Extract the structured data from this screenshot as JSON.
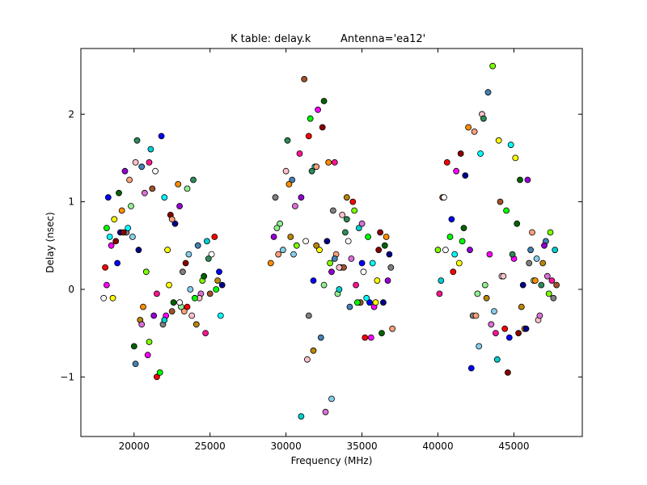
{
  "chart_data": {
    "type": "scatter",
    "title": "K table: delay.k",
    "subtitle": "Antenna='ea12'",
    "xlabel": "Frequency (MHz)",
    "ylabel": "Delay (nsec)",
    "xlim": [
      16500,
      49500
    ],
    "ylim": [
      -1.68,
      2.75
    ],
    "x_ticks": [
      20000,
      25000,
      30000,
      35000,
      40000,
      45000
    ],
    "y_ticks": [
      -1,
      0,
      1,
      2
    ],
    "x_tick_labels": [
      "20000",
      "25000",
      "30000",
      "35000",
      "40000",
      "45000"
    ],
    "y_tick_labels": [
      "−1",
      "0",
      "1",
      "2"
    ],
    "grid": false,
    "legend": "none",
    "marker_colors": [
      "#ffffff",
      "#ff0000",
      "#00ff00",
      "#0000ff",
      "#00ffff",
      "#ff00ff",
      "#ffff00",
      "#8b0000",
      "#006400",
      "#00008b",
      "#ff8c00",
      "#9400d3",
      "#808080",
      "#ffa07a",
      "#90ee90",
      "#87ceeb",
      "#ffc0cb",
      "#2e8b57",
      "#b8860b",
      "#4682b4",
      "#da70d6",
      "#7cfc00",
      "#ff1493",
      "#00ced1",
      "#a0522d"
    ],
    "series": [
      {
        "x": [
          18000,
          18100,
          18200,
          18300,
          18400,
          18500,
          18700,
          18800,
          19000,
          19100,
          19200,
          19400,
          19500,
          19700,
          19800,
          19900,
          20100,
          20200,
          20400,
          20500,
          20700,
          20800,
          21000,
          21100,
          21200,
          21400,
          21500,
          21700,
          21800,
          22000,
          22100,
          22300,
          22400,
          22600,
          22700,
          22900,
          23000,
          23200,
          23300,
          23500,
          23600,
          23800,
          23900,
          24100,
          24200,
          24400,
          24500,
          24700,
          24800,
          25000,
          25100,
          25300,
          25400,
          25600,
          25700,
          18200,
          18600,
          19300,
          20000,
          20300,
          20600,
          21300,
          21900,
          22500,
          23100,
          23700,
          24300,
          24900,
          25500,
          20100,
          20500,
          21000,
          21500,
          22000,
          22500,
          23000,
          23500,
          24000,
          18900,
          19600,
          20900,
          22200,
          23400,
          24600,
          25800
        ],
        "y": [
          -0.1,
          0.25,
          0.7,
          1.05,
          0.6,
          0.5,
          0.8,
          0.55,
          1.1,
          0.65,
          0.9,
          1.35,
          0.65,
          1.25,
          0.95,
          0.6,
          1.45,
          1.7,
          -0.35,
          1.4,
          1.1,
          0.2,
          1.45,
          1.6,
          1.15,
          1.35,
          -1.0,
          -0.95,
          1.75,
          1.05,
          -0.3,
          0.05,
          0.85,
          -0.15,
          0.75,
          1.2,
          0.95,
          0.2,
          -0.25,
          1.15,
          0.4,
          -0.3,
          1.25,
          -0.4,
          0.5,
          -0.05,
          0.1,
          -0.5,
          0.55,
          -0.05,
          0.4,
          0.6,
          0.0,
          0.2,
          -0.3,
          0.05,
          -0.1,
          0.65,
          -0.65,
          0.45,
          -0.2,
          -0.3,
          -0.4,
          0.8,
          -0.2,
          0.0,
          -0.1,
          0.35,
          0.1,
          -0.85,
          -0.4,
          -0.6,
          -0.05,
          -0.35,
          -0.25,
          -0.15,
          -0.2,
          -0.1,
          0.3,
          0.7,
          -0.75,
          0.45,
          0.3,
          0.15,
          0.05
        ]
      },
      {
        "x": [
          29000,
          29200,
          29300,
          29500,
          29600,
          29800,
          30000,
          30100,
          30300,
          30400,
          30600,
          30700,
          30900,
          31000,
          31200,
          31300,
          31500,
          31600,
          31800,
          31900,
          32100,
          32200,
          32400,
          32500,
          32700,
          32800,
          33000,
          33100,
          33300,
          33400,
          33600,
          33700,
          33900,
          34000,
          34200,
          34300,
          34500,
          34600,
          34800,
          34900,
          35100,
          35200,
          35400,
          35500,
          35700,
          35800,
          36000,
          36100,
          36300,
          36400,
          36600,
          36700,
          36900,
          37000,
          29400,
          30500,
          31400,
          31700,
          32000,
          32300,
          32600,
          32900,
          33200,
          33500,
          33800,
          34100,
          34400,
          34700,
          35000,
          35300,
          35600,
          35900,
          36200,
          36500,
          36800,
          30200,
          31000,
          31500,
          32000,
          32500,
          33000,
          33500,
          34000,
          31800,
          33200,
          35000
        ],
        "y": [
          0.3,
          0.6,
          1.05,
          0.4,
          0.75,
          0.45,
          1.35,
          1.7,
          0.6,
          1.25,
          0.95,
          0.5,
          1.55,
          -1.45,
          2.4,
          0.55,
          1.75,
          1.95,
          0.1,
          1.4,
          2.05,
          0.45,
          1.85,
          2.15,
          0.55,
          1.45,
          0.2,
          0.9,
          0.4,
          -0.05,
          0.25,
          0.85,
          0.65,
          1.05,
          -0.2,
          0.35,
          0.9,
          0.05,
          0.7,
          -0.15,
          0.2,
          -0.55,
          0.6,
          -0.15,
          0.3,
          -0.2,
          0.1,
          0.45,
          -0.5,
          -0.15,
          0.6,
          0.1,
          0.25,
          -0.45,
          0.7,
          0.4,
          -0.8,
          1.35,
          0.5,
          -0.55,
          -1.4,
          0.3,
          1.45,
          0.0,
          0.25,
          0.55,
          1.0,
          -0.15,
          0.3,
          -0.1,
          -0.55,
          -0.15,
          0.65,
          0.5,
          0.4,
          1.2,
          1.05,
          -0.3,
          1.4,
          0.05,
          -1.25,
          0.25,
          0.8,
          -0.7,
          0.35,
          0.75
        ]
      },
      {
        "x": [
          40000,
          40100,
          40200,
          40300,
          40500,
          40600,
          40800,
          40900,
          41100,
          41200,
          41400,
          41500,
          41700,
          41800,
          42000,
          42100,
          42300,
          42400,
          42600,
          42700,
          42900,
          43000,
          43200,
          43300,
          43500,
          43600,
          43800,
          43900,
          44100,
          44200,
          44400,
          44500,
          44700,
          44800,
          45000,
          45100,
          45300,
          45400,
          45600,
          45700,
          45900,
          46000,
          46200,
          46300,
          46500,
          46600,
          46800,
          46900,
          47100,
          47200,
          47400,
          47500,
          47700,
          47800,
          40400,
          41000,
          41600,
          42200,
          42800,
          43400,
          44000,
          44600,
          45200,
          45800,
          46400,
          47000,
          47600,
          42500,
          43100,
          43700,
          44300,
          44900,
          45500,
          46100,
          46700,
          47300
        ],
        "y": [
          0.45,
          -0.05,
          0.1,
          1.05,
          0.45,
          1.45,
          0.6,
          0.8,
          0.4,
          1.35,
          0.3,
          1.55,
          0.7,
          1.3,
          1.85,
          0.45,
          -0.3,
          1.8,
          -0.05,
          -0.65,
          2.0,
          1.95,
          -0.1,
          2.25,
          -0.4,
          2.55,
          -0.5,
          -0.8,
          1.0,
          0.15,
          -0.45,
          0.9,
          -0.55,
          1.65,
          0.35,
          1.5,
          -0.5,
          1.25,
          0.05,
          -0.45,
          1.25,
          0.3,
          0.65,
          0.1,
          0.35,
          -0.35,
          0.05,
          0.3,
          0.55,
          0.15,
          0.65,
          0.1,
          0.45,
          0.05,
          1.05,
          0.2,
          0.55,
          -0.9,
          1.55,
          0.4,
          1.7,
          -0.95,
          0.75,
          -0.45,
          0.1,
          0.5,
          -0.1,
          -0.3,
          0.05,
          -0.25,
          0.15,
          0.4,
          -0.2,
          0.45,
          -0.3,
          -0.05
        ]
      }
    ]
  }
}
